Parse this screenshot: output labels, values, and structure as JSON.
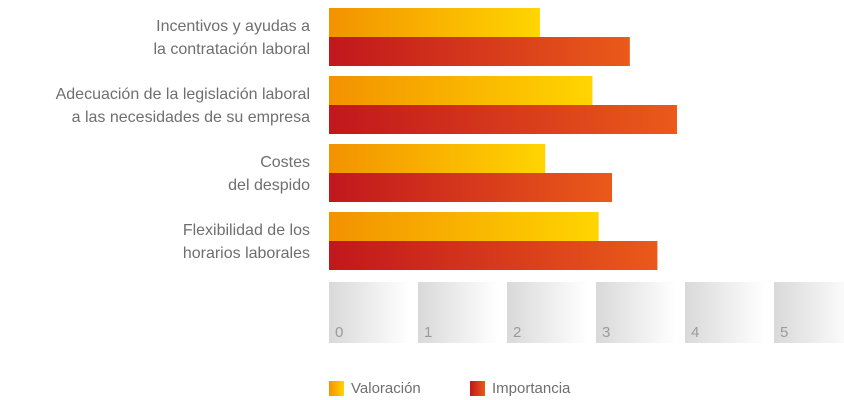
{
  "chart_data": {
    "type": "hbar",
    "categories": [
      [
        "Incentivos y ayudas a",
        "la contratación laboral"
      ],
      [
        "Adecuación de la legislación laboral",
        "a las necesidades de su empresa"
      ],
      [
        "Costes",
        "del despido"
      ],
      [
        "Flexibilidad de los",
        "horarios laborales"
      ]
    ],
    "series": [
      {
        "name": "Valoración",
        "colors": [
          "#f39200",
          "#ffd500"
        ],
        "values": [
          2.37,
          2.96,
          2.43,
          3.03
        ]
      },
      {
        "name": "Importancia",
        "colors": [
          "#c1171d",
          "#ea5a1a"
        ],
        "values": [
          3.38,
          3.91,
          3.18,
          3.69
        ]
      }
    ],
    "xlim": [
      0,
      5.8
    ],
    "xticks": [
      0,
      1,
      2,
      3,
      4,
      5
    ],
    "legend": "bottom"
  }
}
